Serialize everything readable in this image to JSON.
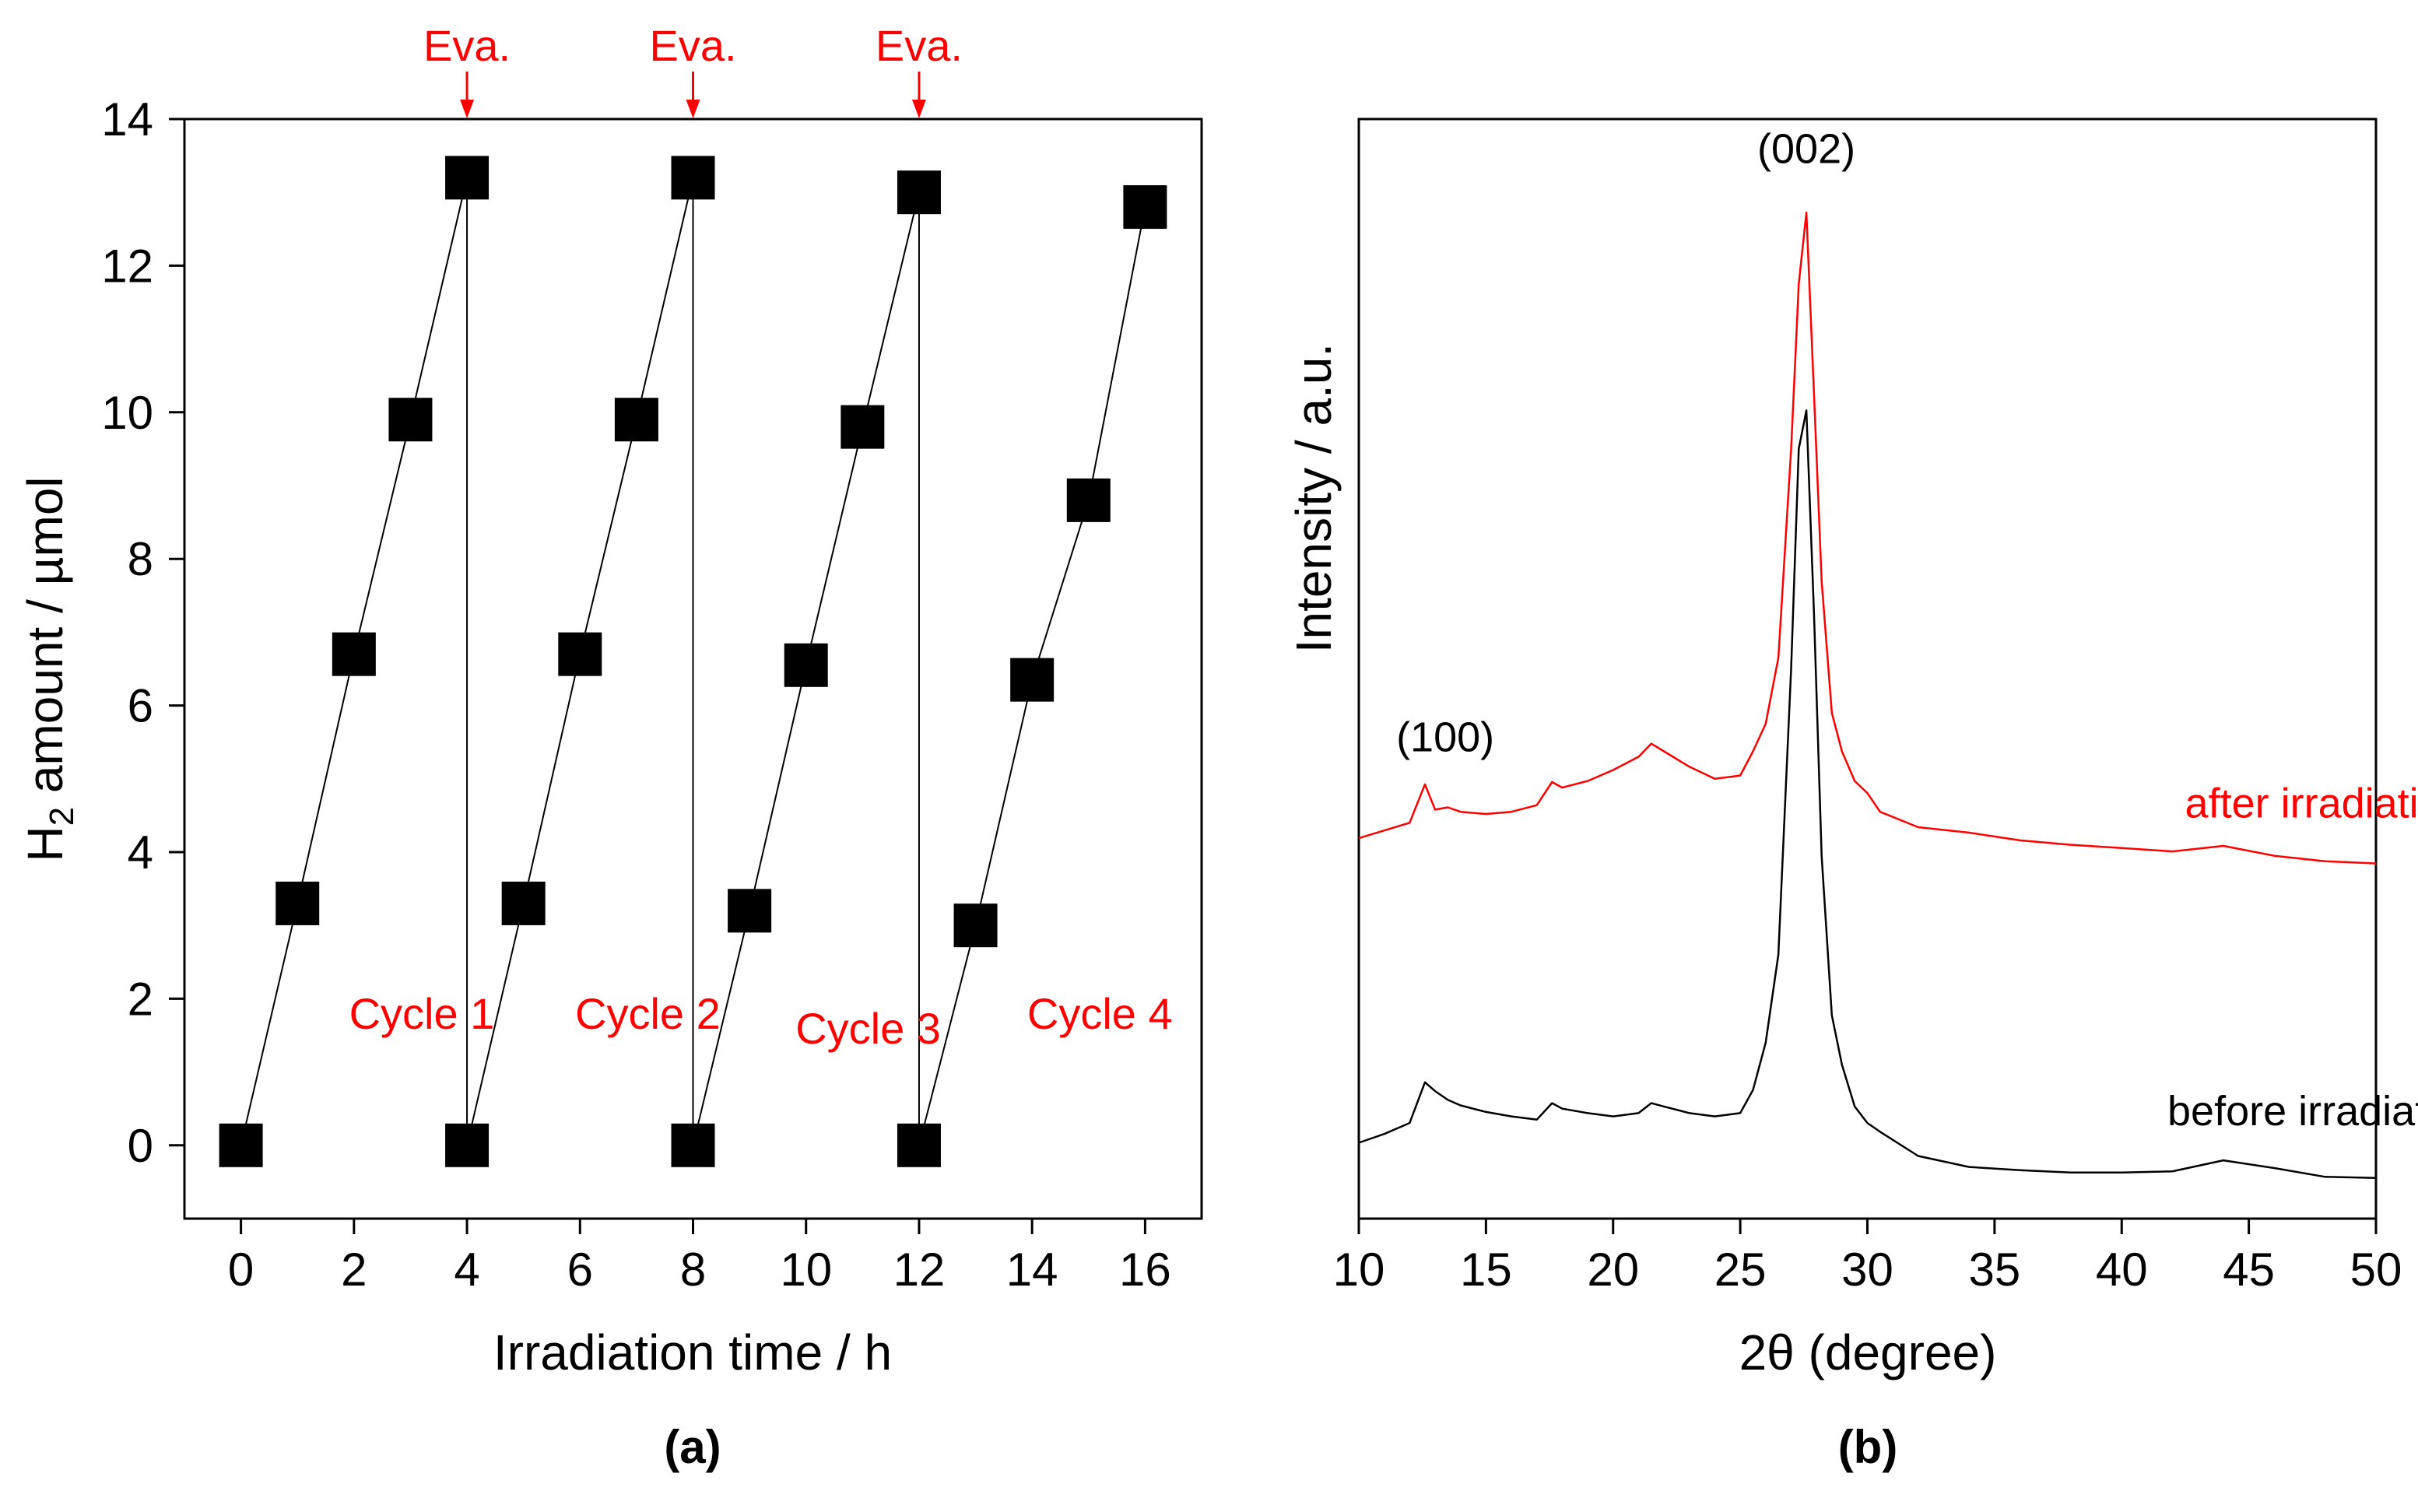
{
  "chart_data": [
    {
      "panel": "(a)",
      "type": "scatter",
      "xlabel": "Irradiation time / h",
      "ylabel_main": "H",
      "ylabel_sub": "2",
      "ylabel_rest": " amount / µmol",
      "xlim": [
        -1,
        17
      ],
      "ylim": [
        -1,
        14
      ],
      "xticks": [
        0,
        2,
        4,
        6,
        8,
        10,
        12,
        14,
        16
      ],
      "yticks": [
        0,
        2,
        4,
        6,
        8,
        10,
        12,
        14
      ],
      "x": [
        0,
        1,
        2,
        3,
        4,
        4,
        5,
        6,
        7,
        8,
        8,
        9,
        10,
        11,
        12,
        12,
        13,
        14,
        15,
        16
      ],
      "y": [
        0,
        3.3,
        6.7,
        9.9,
        13.2,
        0,
        3.3,
        6.7,
        9.9,
        13.2,
        0,
        3.2,
        6.55,
        9.8,
        13.0,
        0,
        3.0,
        6.35,
        8.8,
        12.8
      ],
      "evacuation_times": [
        4,
        8,
        12
      ],
      "evacuation_label": "Eva.",
      "cycles": [
        {
          "label": "Cycle 1",
          "x": 3.2,
          "y": 1.8
        },
        {
          "label": "Cycle 2",
          "x": 7.2,
          "y": 1.8
        },
        {
          "label": "Cycle 3",
          "x": 11.1,
          "y": 1.6
        },
        {
          "label": "Cycle 4",
          "x": 15.2,
          "y": 1.8
        }
      ],
      "colors": {
        "points": "#000000",
        "annotations": "#ff0000"
      }
    },
    {
      "panel": "(b)",
      "type": "line",
      "xlabel": "2θ (degree)",
      "ylabel": "Intensity / a.u.",
      "xlim": [
        10,
        50
      ],
      "ylim": [
        0,
        100
      ],
      "xticks": [
        10,
        15,
        20,
        25,
        30,
        35,
        40,
        45,
        50
      ],
      "series": [
        {
          "name": "after irradiation",
          "color": "#ff0000",
          "x": [
            10,
            11,
            12,
            12.6,
            13.0,
            13.5,
            14,
            15,
            16,
            17,
            17.6,
            18,
            19,
            20,
            21,
            21.5,
            22,
            23,
            24,
            25,
            25.5,
            26,
            26.5,
            27,
            27.3,
            27.6,
            27.9,
            28.2,
            28.6,
            29,
            29.5,
            30,
            30.5,
            32,
            34,
            36,
            38,
            40,
            42,
            44,
            46,
            48,
            50
          ],
          "y": [
            34.6,
            35.3,
            36.0,
            39.5,
            37.2,
            37.4,
            37.0,
            36.8,
            37.0,
            37.6,
            39.7,
            39.2,
            39.8,
            40.8,
            42.0,
            43.2,
            42.5,
            41.1,
            40.0,
            40.3,
            42.5,
            45.0,
            51.0,
            70.0,
            85.0,
            91.5,
            75.0,
            58.0,
            46.0,
            42.5,
            39.8,
            38.7,
            37.0,
            35.6,
            35.1,
            34.4,
            34.0,
            33.7,
            33.4,
            33.9,
            33.0,
            32.5,
            32.3
          ]
        },
        {
          "name": "before irradiation",
          "color": "#000000",
          "x": [
            10,
            11,
            12,
            12.6,
            13.0,
            13.5,
            14,
            15,
            16,
            17,
            17.6,
            18,
            19,
            20,
            21,
            21.5,
            22,
            23,
            24,
            25,
            25.5,
            26,
            26.5,
            27,
            27.3,
            27.6,
            27.9,
            28.2,
            28.6,
            29,
            29.5,
            30,
            30.5,
            32,
            34,
            36,
            38,
            40,
            42,
            44,
            46,
            48,
            50
          ],
          "y": [
            6.9,
            7.7,
            8.7,
            12.4,
            11.6,
            10.8,
            10.3,
            9.7,
            9.3,
            9.0,
            10.5,
            10.0,
            9.6,
            9.3,
            9.6,
            10.5,
            10.2,
            9.6,
            9.3,
            9.6,
            11.7,
            16.0,
            24.0,
            50.0,
            70.0,
            73.5,
            55.0,
            33.0,
            18.5,
            14.0,
            10.2,
            8.7,
            7.9,
            5.7,
            4.7,
            4.4,
            4.2,
            4.2,
            4.3,
            5.3,
            4.6,
            3.8,
            3.7
          ]
        }
      ],
      "annotations": [
        {
          "text": "(100)",
          "x": 13.4,
          "y": 42.5
        },
        {
          "text": "(002)",
          "x": 27.6,
          "y": 96.0
        }
      ],
      "series_label_positions": [
        {
          "x": 48.0,
          "y": 36.5
        },
        {
          "x": 48.0,
          "y": 8.5
        }
      ]
    }
  ]
}
